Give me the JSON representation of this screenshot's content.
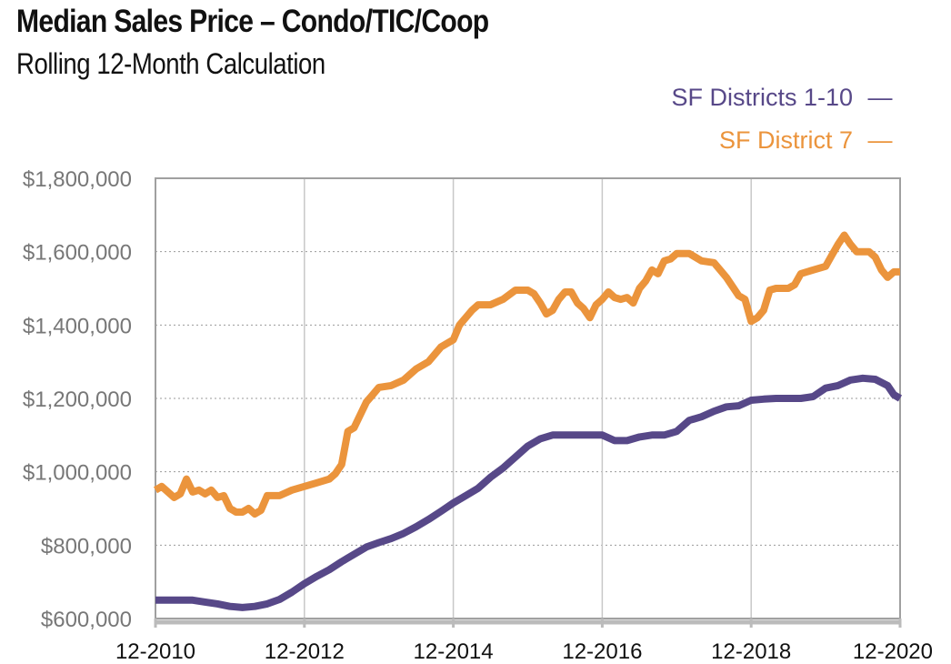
{
  "chart_data": {
    "type": "line",
    "title": "Median Sales Price – Condo/TIC/Coop",
    "subtitle": "Rolling 12-Month Calculation",
    "xlabel": "",
    "ylabel": "",
    "x_tick_labels": [
      "12-2010",
      "12-2012",
      "12-2014",
      "12-2016",
      "12-2018",
      "12-2020"
    ],
    "y_tick_labels": [
      "$600,000",
      "$800,000",
      "$1,000,000",
      "$1,200,000",
      "$1,400,000",
      "$1,600,000",
      "$1,800,000"
    ],
    "y_ticks": [
      600000,
      800000,
      1000000,
      1200000,
      1400000,
      1600000,
      1800000
    ],
    "x_range": [
      0,
      120
    ],
    "ylim": [
      600000,
      1800000
    ],
    "grid": true,
    "legend_position": "top-right",
    "x_unit": "months since 12-2010",
    "series": [
      {
        "name": "SF Districts 1-10",
        "legend_label": "SF Districts 1-10",
        "legend_marker": "—",
        "color": "#574888",
        "points": [
          [
            0,
            650000
          ],
          [
            2,
            650000
          ],
          [
            4,
            650000
          ],
          [
            6,
            650000
          ],
          [
            8,
            645000
          ],
          [
            10,
            640000
          ],
          [
            12,
            633000
          ],
          [
            14,
            630000
          ],
          [
            16,
            633000
          ],
          [
            18,
            640000
          ],
          [
            20,
            652000
          ],
          [
            22,
            672000
          ],
          [
            24,
            695000
          ],
          [
            26,
            715000
          ],
          [
            28,
            733000
          ],
          [
            30,
            755000
          ],
          [
            32,
            775000
          ],
          [
            34,
            795000
          ],
          [
            36,
            807000
          ],
          [
            38,
            818000
          ],
          [
            40,
            832000
          ],
          [
            42,
            850000
          ],
          [
            44,
            870000
          ],
          [
            46,
            892000
          ],
          [
            48,
            915000
          ],
          [
            50,
            935000
          ],
          [
            52,
            955000
          ],
          [
            54,
            985000
          ],
          [
            56,
            1010000
          ],
          [
            58,
            1040000
          ],
          [
            60,
            1070000
          ],
          [
            62,
            1090000
          ],
          [
            64,
            1100000
          ],
          [
            66,
            1100000
          ],
          [
            68,
            1100000
          ],
          [
            70,
            1100000
          ],
          [
            72,
            1100000
          ],
          [
            74,
            1085000
          ],
          [
            76,
            1085000
          ],
          [
            78,
            1095000
          ],
          [
            80,
            1100000
          ],
          [
            82,
            1100000
          ],
          [
            84,
            1110000
          ],
          [
            86,
            1140000
          ],
          [
            88,
            1150000
          ],
          [
            90,
            1165000
          ],
          [
            92,
            1177000
          ],
          [
            94,
            1180000
          ],
          [
            96,
            1195000
          ],
          [
            98,
            1198000
          ],
          [
            100,
            1200000
          ],
          [
            102,
            1200000
          ],
          [
            104,
            1200000
          ],
          [
            106,
            1205000
          ],
          [
            108,
            1228000
          ],
          [
            110,
            1235000
          ],
          [
            112,
            1250000
          ],
          [
            114,
            1255000
          ],
          [
            116,
            1252000
          ],
          [
            118,
            1235000
          ],
          [
            119,
            1210000
          ],
          [
            120,
            1200000
          ]
        ]
      },
      {
        "name": "SF District 7",
        "legend_label": "SF District 7",
        "legend_marker": "—",
        "color": "#EB943C",
        "points": [
          [
            0,
            950000
          ],
          [
            1,
            960000
          ],
          [
            3,
            930000
          ],
          [
            4,
            940000
          ],
          [
            5,
            980000
          ],
          [
            6,
            945000
          ],
          [
            7,
            950000
          ],
          [
            8,
            940000
          ],
          [
            9,
            950000
          ],
          [
            10,
            930000
          ],
          [
            11,
            935000
          ],
          [
            12,
            900000
          ],
          [
            13,
            890000
          ],
          [
            14,
            890000
          ],
          [
            15,
            900000
          ],
          [
            16,
            885000
          ],
          [
            17,
            895000
          ],
          [
            18,
            935000
          ],
          [
            20,
            935000
          ],
          [
            22,
            950000
          ],
          [
            24,
            960000
          ],
          [
            26,
            970000
          ],
          [
            28,
            980000
          ],
          [
            29,
            995000
          ],
          [
            30,
            1020000
          ],
          [
            31,
            1110000
          ],
          [
            32,
            1120000
          ],
          [
            34,
            1190000
          ],
          [
            35,
            1210000
          ],
          [
            36,
            1230000
          ],
          [
            38,
            1235000
          ],
          [
            40,
            1250000
          ],
          [
            42,
            1280000
          ],
          [
            44,
            1300000
          ],
          [
            46,
            1340000
          ],
          [
            48,
            1360000
          ],
          [
            49,
            1400000
          ],
          [
            51,
            1440000
          ],
          [
            52,
            1455000
          ],
          [
            54,
            1455000
          ],
          [
            56,
            1470000
          ],
          [
            58,
            1495000
          ],
          [
            60,
            1495000
          ],
          [
            61,
            1485000
          ],
          [
            62,
            1460000
          ],
          [
            63,
            1430000
          ],
          [
            64,
            1440000
          ],
          [
            65,
            1470000
          ],
          [
            66,
            1490000
          ],
          [
            67,
            1490000
          ],
          [
            68,
            1460000
          ],
          [
            69,
            1445000
          ],
          [
            70,
            1420000
          ],
          [
            71,
            1455000
          ],
          [
            72,
            1470000
          ],
          [
            73,
            1490000
          ],
          [
            74,
            1475000
          ],
          [
            75,
            1470000
          ],
          [
            76,
            1475000
          ],
          [
            77,
            1460000
          ],
          [
            78,
            1500000
          ],
          [
            79,
            1520000
          ],
          [
            80,
            1550000
          ],
          [
            81,
            1540000
          ],
          [
            82,
            1575000
          ],
          [
            83,
            1580000
          ],
          [
            84,
            1595000
          ],
          [
            86,
            1595000
          ],
          [
            88,
            1575000
          ],
          [
            90,
            1570000
          ],
          [
            91,
            1550000
          ],
          [
            92,
            1530000
          ],
          [
            93,
            1505000
          ],
          [
            94,
            1480000
          ],
          [
            95,
            1470000
          ],
          [
            96,
            1410000
          ],
          [
            97,
            1420000
          ],
          [
            98,
            1440000
          ],
          [
            99,
            1495000
          ],
          [
            100,
            1500000
          ],
          [
            102,
            1500000
          ],
          [
            103,
            1510000
          ],
          [
            104,
            1540000
          ],
          [
            106,
            1550000
          ],
          [
            108,
            1560000
          ],
          [
            109,
            1590000
          ],
          [
            110,
            1620000
          ],
          [
            111,
            1645000
          ],
          [
            112,
            1620000
          ],
          [
            113,
            1600000
          ],
          [
            114,
            1600000
          ],
          [
            115,
            1600000
          ],
          [
            116,
            1585000
          ],
          [
            117,
            1550000
          ],
          [
            118,
            1530000
          ],
          [
            119,
            1545000
          ],
          [
            120,
            1545000
          ]
        ]
      }
    ]
  }
}
